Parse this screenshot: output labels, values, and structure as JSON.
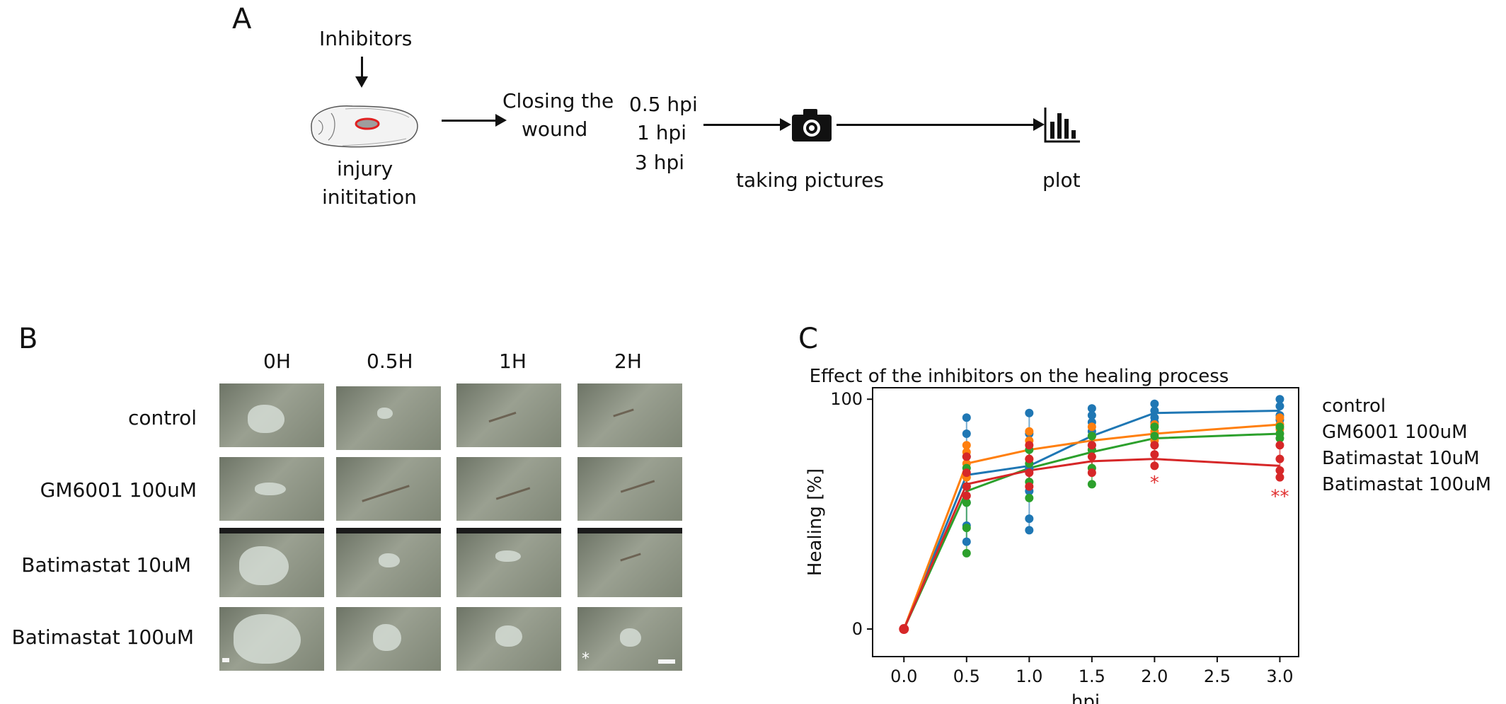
{
  "panel_a": {
    "letter": "A",
    "inhibitors_label": "Inhibitors",
    "injury_label_line1": "injury",
    "injury_label_line2": "inititation",
    "closing_line1": "Closing the",
    "closing_line2": "wound",
    "timepoints": [
      "0.5 hpi",
      "1 hpi",
      "3 hpi"
    ],
    "taking_pictures": "taking pictures",
    "plot_label": "plot",
    "icons": [
      "embryo-icon",
      "camera-icon",
      "bar-chart-icon"
    ],
    "wound_color": "#e02020"
  },
  "panel_b": {
    "letter": "B",
    "columns": [
      "0H",
      "0.5H",
      "1H",
      "2H"
    ],
    "rows": [
      "control",
      "GM6001 100uM",
      "Batimastat 10uM",
      "Batimastat 100uM"
    ],
    "star_mark": "*"
  },
  "panel_c": {
    "letter": "C",
    "significance_1": "*",
    "significance_2": "**"
  },
  "chart_data": {
    "type": "line",
    "title": "Effect of the inhibitors on the healing process",
    "xlabel": "hpi",
    "ylabel": "Healing [%]",
    "xlim": [
      -0.25,
      3.15
    ],
    "ylim": [
      -12,
      105
    ],
    "xticks": [
      0.0,
      0.5,
      1.0,
      1.5,
      2.0,
      2.5,
      3.0
    ],
    "xtick_labels": [
      "0.0",
      "0.5",
      "1.0",
      "1.5",
      "2.0",
      "2.5",
      "3.0"
    ],
    "yticks": [
      0,
      100
    ],
    "ytick_labels": [
      "0",
      "100"
    ],
    "legend_placement": "right-outside",
    "series": [
      {
        "name": "control",
        "color": "#1f77b4",
        "x": [
          0,
          0.5,
          1.0,
          1.5,
          2.0,
          3.0
        ],
        "mean": [
          0,
          67,
          71,
          84,
          94,
          95
        ],
        "points": [
          [
            0,
            0
          ],
          [
            0.5,
            92
          ],
          [
            0.5,
            85
          ],
          [
            0.5,
            75
          ],
          [
            0.5,
            55
          ],
          [
            0.5,
            45
          ],
          [
            0.5,
            38
          ],
          [
            1.0,
            94
          ],
          [
            1.0,
            85
          ],
          [
            1.0,
            70
          ],
          [
            1.0,
            60
          ],
          [
            1.0,
            48
          ],
          [
            1.0,
            43
          ],
          [
            1.5,
            96
          ],
          [
            1.5,
            93
          ],
          [
            1.5,
            90
          ],
          [
            1.5,
            86
          ],
          [
            1.5,
            80
          ],
          [
            2.0,
            98
          ],
          [
            2.0,
            95
          ],
          [
            2.0,
            92
          ],
          [
            2.0,
            90
          ],
          [
            3.0,
            100
          ],
          [
            3.0,
            97
          ],
          [
            3.0,
            93
          ],
          [
            3.0,
            91
          ]
        ]
      },
      {
        "name": "GM6001 100uM",
        "color": "#ff7f0e",
        "x": [
          0,
          0.5,
          1.0,
          1.5,
          2.0,
          3.0
        ],
        "mean": [
          0,
          72,
          78,
          82,
          85,
          89
        ],
        "points": [
          [
            0.5,
            80
          ],
          [
            0.5,
            77
          ],
          [
            0.5,
            72
          ],
          [
            0.5,
            66
          ],
          [
            1.0,
            86
          ],
          [
            1.0,
            82
          ],
          [
            1.0,
            74
          ],
          [
            1.5,
            88
          ],
          [
            1.5,
            84
          ],
          [
            1.5,
            78
          ],
          [
            2.0,
            89
          ],
          [
            2.0,
            86
          ],
          [
            2.0,
            82
          ],
          [
            3.0,
            92
          ],
          [
            3.0,
            89
          ],
          [
            3.0,
            87
          ]
        ]
      },
      {
        "name": "Batimastat 10uM",
        "color": "#2ca02c",
        "x": [
          0,
          0.5,
          1.0,
          1.5,
          2.0,
          3.0
        ],
        "mean": [
          0,
          60,
          70,
          77,
          83,
          85
        ],
        "points": [
          [
            0.5,
            70
          ],
          [
            0.5,
            62
          ],
          [
            0.5,
            55
          ],
          [
            0.5,
            44
          ],
          [
            0.5,
            33
          ],
          [
            1.0,
            78
          ],
          [
            1.0,
            72
          ],
          [
            1.0,
            64
          ],
          [
            1.0,
            57
          ],
          [
            1.5,
            84
          ],
          [
            1.5,
            78
          ],
          [
            1.5,
            70
          ],
          [
            1.5,
            63
          ],
          [
            2.0,
            88
          ],
          [
            2.0,
            84
          ],
          [
            2.0,
            80
          ],
          [
            3.0,
            88
          ],
          [
            3.0,
            85
          ],
          [
            3.0,
            83
          ]
        ]
      },
      {
        "name": "Batimastat 100uM",
        "color": "#d62728",
        "x": [
          0,
          0.5,
          1.0,
          1.5,
          2.0,
          3.0
        ],
        "mean": [
          0,
          63,
          69,
          73,
          74,
          71
        ],
        "points": [
          [
            0.5,
            75
          ],
          [
            0.5,
            68
          ],
          [
            0.5,
            62
          ],
          [
            0.5,
            58
          ],
          [
            1.0,
            80
          ],
          [
            1.0,
            74
          ],
          [
            1.0,
            68
          ],
          [
            1.0,
            62
          ],
          [
            1.5,
            80
          ],
          [
            1.5,
            75
          ],
          [
            1.5,
            68
          ],
          [
            2.0,
            80
          ],
          [
            2.0,
            76
          ],
          [
            2.0,
            71
          ],
          [
            3.0,
            80
          ],
          [
            3.0,
            74
          ],
          [
            3.0,
            69
          ],
          [
            3.0,
            66
          ]
        ]
      }
    ],
    "annotations": [
      {
        "x": 2.0,
        "y": 61,
        "text": "*",
        "color": "#e03030"
      },
      {
        "x": 3.0,
        "y": 55,
        "text": "**",
        "color": "#e03030"
      }
    ]
  }
}
